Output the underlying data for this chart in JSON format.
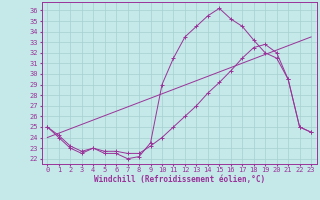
{
  "xlabel": "Windchill (Refroidissement éolien,°C)",
  "bg_color": "#c5e8e8",
  "grid_color": "#a8d0d0",
  "line_color": "#993399",
  "xlim": [
    -0.5,
    23.5
  ],
  "ylim": [
    21.5,
    36.8
  ],
  "yticks": [
    22,
    23,
    24,
    25,
    26,
    27,
    28,
    29,
    30,
    31,
    32,
    33,
    34,
    35,
    36
  ],
  "xticks": [
    0,
    1,
    2,
    3,
    4,
    5,
    6,
    7,
    8,
    9,
    10,
    11,
    12,
    13,
    14,
    15,
    16,
    17,
    18,
    19,
    20,
    21,
    22,
    23
  ],
  "series1_x": [
    0,
    1,
    2,
    3,
    4,
    5,
    6,
    7,
    8,
    9,
    10,
    11,
    12,
    13,
    14,
    15,
    16,
    17,
    18,
    19,
    20,
    21,
    22,
    23
  ],
  "series1_y": [
    25.0,
    24.0,
    23.0,
    22.5,
    23.0,
    22.5,
    22.5,
    22.0,
    22.2,
    23.5,
    29.0,
    31.5,
    33.5,
    34.5,
    35.5,
    36.2,
    35.2,
    34.5,
    33.2,
    32.0,
    31.5,
    29.5,
    25.0,
    24.5
  ],
  "series2_x": [
    0,
    1,
    2,
    3,
    4,
    5,
    6,
    7,
    8,
    9,
    10,
    11,
    12,
    13,
    14,
    15,
    16,
    17,
    18,
    19,
    20,
    21,
    22,
    23
  ],
  "series2_y": [
    25.0,
    24.2,
    23.2,
    22.7,
    23.0,
    22.7,
    22.7,
    22.5,
    22.5,
    23.2,
    24.0,
    25.0,
    26.0,
    27.0,
    28.2,
    29.2,
    30.3,
    31.5,
    32.5,
    32.8,
    32.0,
    29.5,
    25.0,
    24.5
  ],
  "series3_x": [
    0,
    23
  ],
  "series3_y": [
    24.0,
    33.5
  ],
  "xlabel_fontsize": 5.5,
  "tick_fontsize": 5.0
}
